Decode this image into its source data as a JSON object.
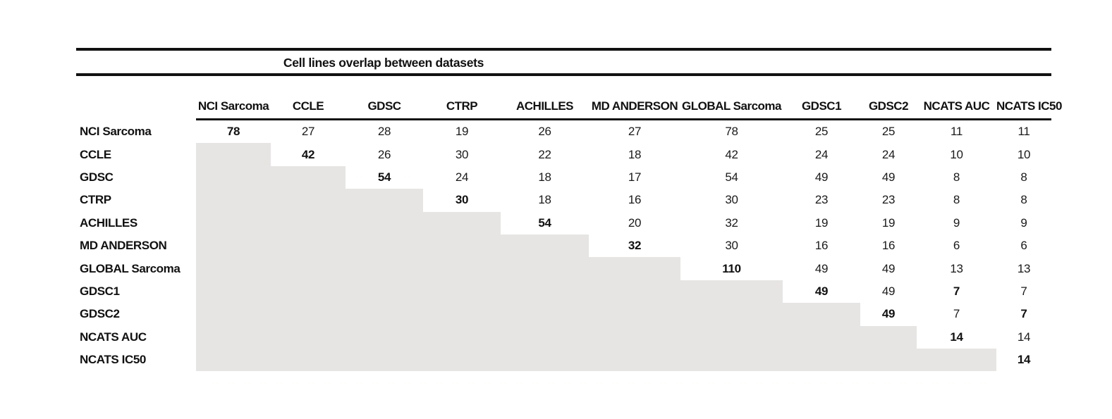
{
  "title": "Cell lines overlap between datasets",
  "chart_data": {
    "type": "table",
    "title": "Cell lines overlap between datasets",
    "description_of_layout": "symmetric overlap matrix shown as upper triangle; lower triangle shaded gray; diagonal values bold",
    "columns": [
      "NCI Sarcoma",
      "CCLE",
      "GDSC",
      "CTRP",
      "ACHILLES",
      "MD ANDERSON",
      "GLOBAL Sarcoma",
      "GDSC1",
      "GDSC2",
      "NCATS AUC",
      "NCATS IC50"
    ],
    "rows": [
      "NCI Sarcoma",
      "CCLE",
      "GDSC",
      "CTRP",
      "ACHILLES",
      "MD ANDERSON",
      "GLOBAL Sarcoma",
      "GDSC1",
      "GDSC2",
      "NCATS AUC",
      "NCATS IC50"
    ],
    "matrix": [
      [
        78,
        27,
        28,
        19,
        26,
        27,
        78,
        25,
        25,
        11,
        11
      ],
      [
        null,
        42,
        26,
        30,
        22,
        18,
        42,
        24,
        24,
        10,
        10
      ],
      [
        null,
        null,
        54,
        24,
        18,
        17,
        54,
        49,
        49,
        8,
        8
      ],
      [
        null,
        null,
        null,
        30,
        18,
        16,
        30,
        23,
        23,
        8,
        8
      ],
      [
        null,
        null,
        null,
        null,
        54,
        20,
        32,
        19,
        19,
        9,
        9
      ],
      [
        null,
        null,
        null,
        null,
        null,
        32,
        30,
        16,
        16,
        6,
        6
      ],
      [
        null,
        null,
        null,
        null,
        null,
        null,
        110,
        49,
        49,
        13,
        13
      ],
      [
        null,
        null,
        null,
        null,
        null,
        null,
        null,
        49,
        49,
        7,
        7
      ],
      [
        null,
        null,
        null,
        null,
        null,
        null,
        null,
        null,
        49,
        7,
        7
      ],
      [
        null,
        null,
        null,
        null,
        null,
        null,
        null,
        null,
        null,
        14,
        14
      ],
      [
        null,
        null,
        null,
        null,
        null,
        null,
        null,
        null,
        null,
        null,
        14
      ]
    ],
    "bold_cells": [
      [
        0,
        0
      ],
      [
        1,
        1
      ],
      [
        2,
        2
      ],
      [
        3,
        3
      ],
      [
        4,
        4
      ],
      [
        5,
        5
      ],
      [
        6,
        6
      ],
      [
        7,
        7
      ],
      [
        7,
        9
      ],
      [
        8,
        8
      ],
      [
        8,
        10
      ],
      [
        9,
        9
      ],
      [
        10,
        10
      ]
    ]
  },
  "colors": {
    "background": "#ffffff",
    "shaded_lower_triangle": "#e6e5e3",
    "rule": "#111111",
    "text": "#111111"
  }
}
